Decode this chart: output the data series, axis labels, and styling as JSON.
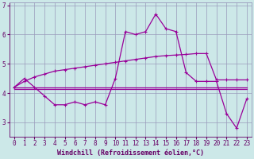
{
  "xlabel": "Windchill (Refroidissement éolien,°C)",
  "x": [
    0,
    1,
    2,
    3,
    4,
    5,
    6,
    7,
    8,
    9,
    10,
    11,
    12,
    13,
    14,
    15,
    16,
    17,
    18,
    19,
    20,
    21,
    22,
    23
  ],
  "line1_data": [
    4.2,
    4.5,
    4.2,
    3.9,
    3.6,
    3.6,
    3.7,
    3.6,
    3.7,
    3.6,
    4.5,
    6.1,
    6.0,
    6.1,
    6.7,
    6.2,
    6.1,
    4.7,
    4.4,
    4.4,
    4.4,
    3.3,
    2.8,
    3.8
  ],
  "line2_data": [
    4.15,
    4.15,
    4.15,
    4.15,
    4.15,
    4.15,
    4.15,
    4.15,
    4.15,
    4.15,
    4.15,
    4.15,
    4.15,
    4.15,
    4.15,
    4.15,
    4.15,
    4.15,
    4.15,
    4.15,
    4.15,
    4.15,
    4.15,
    4.15
  ],
  "line3_data": [
    4.2,
    4.4,
    4.55,
    4.65,
    4.75,
    4.8,
    4.85,
    4.9,
    4.95,
    5.0,
    5.05,
    5.1,
    5.15,
    5.2,
    5.25,
    5.28,
    5.3,
    5.32,
    5.35,
    5.35,
    4.45,
    4.45,
    4.45,
    4.45
  ],
  "line4_data": [
    4.2,
    4.2,
    4.2,
    4.2,
    4.2,
    4.2,
    4.2,
    4.2,
    4.2,
    4.2,
    4.2,
    4.2,
    4.2,
    4.2,
    4.2,
    4.2,
    4.2,
    4.2,
    4.2,
    4.2,
    4.2,
    4.2,
    4.2,
    4.2
  ],
  "line_color": "#990099",
  "bg_color": "#cce8e8",
  "grid_color": "#9999bb",
  "ylim": [
    2.5,
    7.1
  ],
  "yticks": [
    3,
    4,
    5,
    6,
    7
  ],
  "xticks": [
    0,
    1,
    2,
    3,
    4,
    5,
    6,
    7,
    8,
    9,
    10,
    11,
    12,
    13,
    14,
    15,
    16,
    17,
    18,
    19,
    20,
    21,
    22,
    23
  ],
  "markersize": 2.5,
  "linewidth": 0.9,
  "font_color": "#660066",
  "tick_fontsize": 5.5,
  "label_fontsize": 6.0
}
